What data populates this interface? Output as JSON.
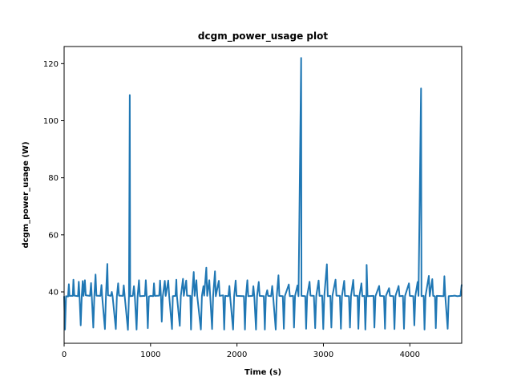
{
  "chart_data": {
    "type": "line",
    "title": "dcgm_power_usage plot",
    "xlabel": "Time (s)",
    "ylabel": "dcgm_power_usage (W)",
    "xlim": [
      0,
      4600
    ],
    "ylim": [
      22,
      126
    ],
    "x_ticks": [
      0,
      1000,
      2000,
      3000,
      4000
    ],
    "y_ticks": [
      40,
      60,
      80,
      100,
      120
    ],
    "grid": false,
    "series": [
      {
        "color": "#1f77b4",
        "points": [
          [
            0,
            38.5
          ],
          [
            10,
            26.8
          ],
          [
            22,
            38.5
          ],
          [
            45,
            38.4
          ],
          [
            55,
            42.7
          ],
          [
            62,
            38.6
          ],
          [
            100,
            38.6
          ],
          [
            108,
            44.3
          ],
          [
            118,
            38.7
          ],
          [
            160,
            38.5
          ],
          [
            170,
            43.6
          ],
          [
            178,
            38.6
          ],
          [
            192,
            28.3
          ],
          [
            204,
            38.5
          ],
          [
            215,
            43.8
          ],
          [
            224,
            38.6
          ],
          [
            240,
            44.1
          ],
          [
            250,
            38.8
          ],
          [
            300,
            38.6
          ],
          [
            312,
            43.1
          ],
          [
            320,
            38.5
          ],
          [
            338,
            27.5
          ],
          [
            350,
            38.6
          ],
          [
            364,
            46.1
          ],
          [
            374,
            38.7
          ],
          [
            420,
            38.6
          ],
          [
            432,
            42.4
          ],
          [
            440,
            38.6
          ],
          [
            472,
            27.0
          ],
          [
            484,
            38.6
          ],
          [
            500,
            49.8
          ],
          [
            508,
            38.8
          ],
          [
            540,
            38.6
          ],
          [
            552,
            40.0
          ],
          [
            560,
            38.6
          ],
          [
            598,
            27.0
          ],
          [
            610,
            38.5
          ],
          [
            625,
            43.0
          ],
          [
            635,
            38.7
          ],
          [
            680,
            38.6
          ],
          [
            690,
            42.3
          ],
          [
            700,
            38.7
          ],
          [
            738,
            26.7
          ],
          [
            750,
            38.6
          ],
          [
            760,
            109.0
          ],
          [
            764,
            38.5
          ],
          [
            795,
            38.6
          ],
          [
            808,
            42.0
          ],
          [
            818,
            38.5
          ],
          [
            838,
            26.8
          ],
          [
            850,
            38.6
          ],
          [
            866,
            44.1
          ],
          [
            876,
            38.5
          ],
          [
            935,
            38.6
          ],
          [
            945,
            44.1
          ],
          [
            955,
            38.7
          ],
          [
            968,
            27.3
          ],
          [
            980,
            38.4
          ],
          [
            1000,
            38.6
          ],
          [
            1030,
            38.5
          ],
          [
            1040,
            43.0
          ],
          [
            1050,
            38.6
          ],
          [
            1100,
            38.7
          ],
          [
            1110,
            44.0
          ],
          [
            1120,
            38.6
          ],
          [
            1130,
            29.6
          ],
          [
            1142,
            38.5
          ],
          [
            1165,
            43.9
          ],
          [
            1175,
            38.6
          ],
          [
            1205,
            44.0
          ],
          [
            1215,
            38.8
          ],
          [
            1248,
            27.0
          ],
          [
            1258,
            38.5
          ],
          [
            1288,
            38.6
          ],
          [
            1298,
            44.3
          ],
          [
            1305,
            38.7
          ],
          [
            1338,
            28.1
          ],
          [
            1350,
            38.6
          ],
          [
            1375,
            44.6
          ],
          [
            1385,
            38.6
          ],
          [
            1412,
            44.0
          ],
          [
            1422,
            38.7
          ],
          [
            1460,
            38.6
          ],
          [
            1468,
            26.8
          ],
          [
            1480,
            38.6
          ],
          [
            1500,
            47.0
          ],
          [
            1510,
            38.6
          ],
          [
            1530,
            44.1
          ],
          [
            1540,
            38.5
          ],
          [
            1582,
            26.8
          ],
          [
            1594,
            38.6
          ],
          [
            1612,
            42.0
          ],
          [
            1620,
            38.7
          ],
          [
            1645,
            48.5
          ],
          [
            1655,
            38.6
          ],
          [
            1680,
            44.1
          ],
          [
            1690,
            38.7
          ],
          [
            1712,
            27.0
          ],
          [
            1724,
            38.6
          ],
          [
            1745,
            47.2
          ],
          [
            1755,
            38.5
          ],
          [
            1790,
            43.9
          ],
          [
            1800,
            38.6
          ],
          [
            1840,
            38.8
          ],
          [
            1852,
            26.8
          ],
          [
            1864,
            38.6
          ],
          [
            1900,
            38.5
          ],
          [
            1912,
            42.1
          ],
          [
            1920,
            38.7
          ],
          [
            1955,
            26.8
          ],
          [
            1967,
            38.5
          ],
          [
            1985,
            44.0
          ],
          [
            1995,
            38.6
          ],
          [
            2080,
            38.5
          ],
          [
            2092,
            26.8
          ],
          [
            2104,
            38.6
          ],
          [
            2120,
            44.1
          ],
          [
            2130,
            38.5
          ],
          [
            2180,
            38.6
          ],
          [
            2190,
            42.0
          ],
          [
            2200,
            38.6
          ],
          [
            2220,
            26.8
          ],
          [
            2232,
            38.6
          ],
          [
            2252,
            43.5
          ],
          [
            2262,
            38.6
          ],
          [
            2310,
            38.5
          ],
          [
            2322,
            26.8
          ],
          [
            2334,
            38.7
          ],
          [
            2350,
            40.6
          ],
          [
            2360,
            38.6
          ],
          [
            2395,
            38.5
          ],
          [
            2408,
            42.1
          ],
          [
            2418,
            38.6
          ],
          [
            2448,
            26.8
          ],
          [
            2460,
            38.6
          ],
          [
            2480,
            45.8
          ],
          [
            2490,
            38.6
          ],
          [
            2530,
            38.5
          ],
          [
            2542,
            27.1
          ],
          [
            2554,
            38.6
          ],
          [
            2600,
            42.6
          ],
          [
            2612,
            38.5
          ],
          [
            2650,
            38.6
          ],
          [
            2660,
            27.5
          ],
          [
            2672,
            38.6
          ],
          [
            2700,
            42.3
          ],
          [
            2712,
            38.5
          ],
          [
            2742,
            122.0
          ],
          [
            2746,
            38.6
          ],
          [
            2790,
            38.5
          ],
          [
            2800,
            27.1
          ],
          [
            2812,
            38.6
          ],
          [
            2840,
            43.6
          ],
          [
            2850,
            38.7
          ],
          [
            2890,
            38.6
          ],
          [
            2905,
            27.3
          ],
          [
            2917,
            38.5
          ],
          [
            2945,
            44.0
          ],
          [
            2955,
            38.6
          ],
          [
            2985,
            38.7
          ],
          [
            2998,
            27.0
          ],
          [
            3010,
            38.6
          ],
          [
            3040,
            49.7
          ],
          [
            3050,
            38.5
          ],
          [
            3080,
            38.6
          ],
          [
            3092,
            27.5
          ],
          [
            3104,
            38.6
          ],
          [
            3140,
            44.3
          ],
          [
            3150,
            38.7
          ],
          [
            3190,
            38.6
          ],
          [
            3202,
            27.1
          ],
          [
            3214,
            38.5
          ],
          [
            3240,
            43.9
          ],
          [
            3250,
            38.6
          ],
          [
            3295,
            38.5
          ],
          [
            3307,
            27.5
          ],
          [
            3319,
            38.6
          ],
          [
            3345,
            44.2
          ],
          [
            3355,
            38.7
          ],
          [
            3395,
            38.6
          ],
          [
            3405,
            27.1
          ],
          [
            3417,
            38.6
          ],
          [
            3440,
            43.0
          ],
          [
            3450,
            38.5
          ],
          [
            3475,
            38.6
          ],
          [
            3485,
            26.8
          ],
          [
            3497,
            38.6
          ],
          [
            3500,
            49.5
          ],
          [
            3510,
            38.5
          ],
          [
            3580,
            38.6
          ],
          [
            3590,
            27.5
          ],
          [
            3602,
            38.5
          ],
          [
            3645,
            42.1
          ],
          [
            3655,
            38.6
          ],
          [
            3700,
            38.5
          ],
          [
            3712,
            27.1
          ],
          [
            3724,
            38.6
          ],
          [
            3760,
            41.3
          ],
          [
            3770,
            38.6
          ],
          [
            3810,
            38.5
          ],
          [
            3822,
            27.0
          ],
          [
            3834,
            38.6
          ],
          [
            3870,
            42.1
          ],
          [
            3880,
            38.5
          ],
          [
            3920,
            38.6
          ],
          [
            3932,
            27.1
          ],
          [
            3944,
            38.6
          ],
          [
            3990,
            43.0
          ],
          [
            4000,
            38.6
          ],
          [
            4040,
            38.5
          ],
          [
            4052,
            28.3
          ],
          [
            4064,
            38.6
          ],
          [
            4090,
            43.5
          ],
          [
            4100,
            38.6
          ],
          [
            4130,
            111.3
          ],
          [
            4134,
            38.5
          ],
          [
            4160,
            38.6
          ],
          [
            4170,
            26.8
          ],
          [
            4182,
            38.6
          ],
          [
            4220,
            45.6
          ],
          [
            4230,
            38.5
          ],
          [
            4260,
            44.5
          ],
          [
            4270,
            38.6
          ],
          [
            4290,
            38.5
          ],
          [
            4300,
            27.3
          ],
          [
            4312,
            38.6
          ],
          [
            4390,
            38.5
          ],
          [
            4400,
            45.5
          ],
          [
            4410,
            38.6
          ],
          [
            4438,
            27.1
          ],
          [
            4450,
            38.5
          ],
          [
            4500,
            38.6
          ],
          [
            4520,
            38.7
          ],
          [
            4550,
            38.5
          ],
          [
            4585,
            38.6
          ],
          [
            4600,
            42.6
          ]
        ]
      }
    ]
  }
}
